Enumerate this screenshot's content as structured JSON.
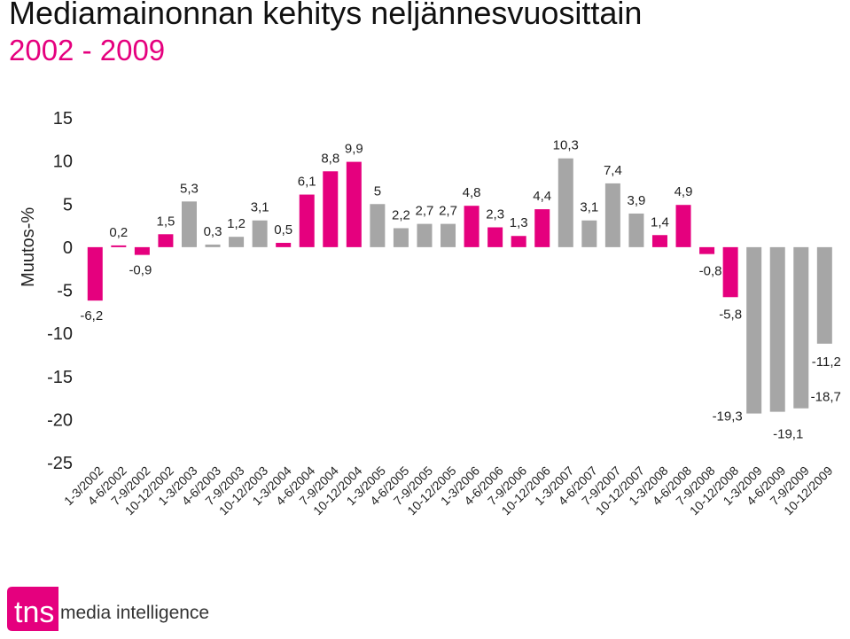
{
  "title": "Mediamainonnan kehitys neljännesvuosittain",
  "subtitle": "2002 - 2009",
  "colors": {
    "accent": "#e5007e",
    "gray": "#a6a6a6",
    "title": "#111111"
  },
  "logo": {
    "brand": "tns",
    "text": "media intelligence"
  },
  "chart_data": {
    "type": "bar",
    "ylabel": "Muutos-%",
    "ylim": [
      -25,
      15
    ],
    "yticks": [
      "15",
      "10",
      "5",
      "0",
      "-5",
      "-10",
      "-15",
      "-20",
      "-25"
    ],
    "grid": false,
    "categories": [
      "1-3/2002",
      "4-6/2002",
      "7-9/2002",
      "10-12/2002",
      "1-3/2003",
      "4-6/2003",
      "7-9/2003",
      "10-12/2003",
      "1-3/2004",
      "4-6/2004",
      "7-9/2004",
      "10-12/2004",
      "1-3/2005",
      "4-6/2005",
      "7-9/2005",
      "10-12/2005",
      "1-3/2006",
      "4-6/2006",
      "7-9/2006",
      "10-12/2006",
      "1-3/2007",
      "4-6/2007",
      "7-9/2007",
      "10-12/2007",
      "1-3/2008",
      "4-6/2008",
      "7-9/2008",
      "10-12/2008",
      "1-3/2009",
      "4-6/2009",
      "7-9/2009",
      "10-12/2009"
    ],
    "values": [
      -6.2,
      0.2,
      -0.9,
      1.5,
      5.3,
      0.3,
      1.2,
      3.1,
      0.5,
      6.1,
      8.8,
      9.9,
      5,
      2.2,
      2.7,
      2.7,
      4.8,
      2.3,
      1.3,
      4.4,
      10.3,
      3.1,
      7.4,
      3.9,
      1.4,
      4.9,
      -0.8,
      -5.8,
      -19.3,
      -19.1,
      -18.7,
      -11.2
    ],
    "labels": [
      "-6,2",
      "0,2",
      "-0,9",
      "1,5",
      "5,3",
      "0,3",
      "1,2",
      "3,1",
      "0,5",
      "6,1",
      "8,8",
      "9,9",
      "5",
      "2,2",
      "2,7",
      "2,7",
      "4,8",
      "2,3",
      "1,3",
      "4,4",
      "10,3",
      "3,1",
      "7,4",
      "3,9",
      "1,4",
      "4,9",
      "-0,8",
      "-5,8",
      "-19,3",
      "-19,1",
      "-18,7",
      "-11,2"
    ],
    "bar_colors": [
      "#e5007e",
      "#e5007e",
      "#e5007e",
      "#e5007e",
      "#a6a6a6",
      "#a6a6a6",
      "#a6a6a6",
      "#a6a6a6",
      "#e5007e",
      "#e5007e",
      "#e5007e",
      "#e5007e",
      "#a6a6a6",
      "#a6a6a6",
      "#a6a6a6",
      "#a6a6a6",
      "#e5007e",
      "#e5007e",
      "#e5007e",
      "#e5007e",
      "#a6a6a6",
      "#a6a6a6",
      "#a6a6a6",
      "#a6a6a6",
      "#e5007e",
      "#e5007e",
      "#e5007e",
      "#e5007e",
      "#a6a6a6",
      "#a6a6a6",
      "#a6a6a6",
      "#a6a6a6"
    ]
  }
}
